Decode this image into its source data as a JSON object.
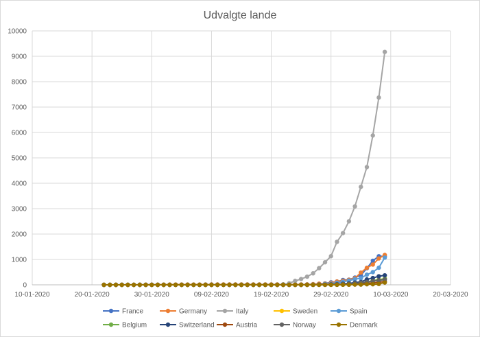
{
  "chart_data": {
    "type": "line",
    "title": "Udvalgte lande",
    "xlabel": "",
    "ylabel": "",
    "x_axis": {
      "type": "date",
      "min": "2020-01-10",
      "max": "2020-03-20",
      "tick_labels": [
        "10-01-2020",
        "20-01-2020",
        "30-01-2020",
        "09-02-2020",
        "19-02-2020",
        "29-02-2020",
        "10-03-2020",
        "20-03-2020"
      ]
    },
    "y_axis": {
      "min": 0,
      "max": 10000,
      "tick_labels": [
        "0",
        "1000",
        "2000",
        "3000",
        "4000",
        "5000",
        "6000",
        "7000",
        "8000",
        "9000",
        "10000"
      ]
    },
    "grid": true,
    "legend_position": "bottom",
    "dates": [
      "2020-01-22",
      "2020-01-23",
      "2020-01-24",
      "2020-01-25",
      "2020-01-26",
      "2020-01-27",
      "2020-01-28",
      "2020-01-29",
      "2020-01-30",
      "2020-01-31",
      "2020-02-01",
      "2020-02-02",
      "2020-02-03",
      "2020-02-04",
      "2020-02-05",
      "2020-02-06",
      "2020-02-07",
      "2020-02-08",
      "2020-02-09",
      "2020-02-10",
      "2020-02-11",
      "2020-02-12",
      "2020-02-13",
      "2020-02-14",
      "2020-02-15",
      "2020-02-16",
      "2020-02-17",
      "2020-02-18",
      "2020-02-19",
      "2020-02-20",
      "2020-02-21",
      "2020-02-22",
      "2020-02-23",
      "2020-02-24",
      "2020-02-25",
      "2020-02-26",
      "2020-02-27",
      "2020-02-28",
      "2020-02-29",
      "2020-03-01",
      "2020-03-02",
      "2020-03-03",
      "2020-03-04",
      "2020-03-05",
      "2020-03-06",
      "2020-03-07",
      "2020-03-08",
      "2020-03-09"
    ],
    "series": [
      {
        "name": "France",
        "color": "#4472c4",
        "values": [
          0,
          0,
          2,
          3,
          3,
          3,
          4,
          5,
          5,
          5,
          6,
          6,
          6,
          6,
          6,
          6,
          6,
          11,
          11,
          11,
          11,
          11,
          11,
          11,
          12,
          12,
          12,
          12,
          12,
          12,
          12,
          12,
          12,
          12,
          14,
          18,
          38,
          57,
          100,
          130,
          191,
          204,
          285,
          377,
          653,
          949,
          1126,
          1126
        ]
      },
      {
        "name": "Germany",
        "color": "#ed7d31",
        "values": [
          0,
          0,
          0,
          0,
          0,
          1,
          4,
          4,
          4,
          5,
          8,
          10,
          12,
          12,
          12,
          12,
          13,
          13,
          14,
          14,
          16,
          16,
          16,
          16,
          16,
          16,
          16,
          16,
          16,
          16,
          16,
          16,
          16,
          16,
          17,
          27,
          46,
          48,
          79,
          130,
          159,
          196,
          262,
          482,
          670,
          799,
          1040,
          1176
        ]
      },
      {
        "name": "Italy",
        "color": "#a5a5a5",
        "values": [
          0,
          0,
          0,
          0,
          0,
          0,
          0,
          0,
          0,
          2,
          2,
          2,
          2,
          2,
          2,
          2,
          3,
          3,
          3,
          3,
          3,
          3,
          3,
          3,
          3,
          3,
          3,
          3,
          3,
          3,
          20,
          62,
          155,
          229,
          322,
          453,
          655,
          888,
          1128,
          1694,
          2036,
          2502,
          3089,
          3858,
          4636,
          5883,
          7375,
          9172
        ]
      },
      {
        "name": "Sweden",
        "color": "#ffc000",
        "values": [
          0,
          0,
          0,
          0,
          0,
          0,
          0,
          0,
          0,
          1,
          1,
          1,
          1,
          1,
          1,
          1,
          1,
          1,
          1,
          1,
          1,
          1,
          1,
          1,
          1,
          1,
          1,
          1,
          1,
          1,
          1,
          1,
          1,
          1,
          1,
          2,
          7,
          7,
          12,
          14,
          15,
          21,
          35,
          94,
          101,
          161,
          203,
          248
        ]
      },
      {
        "name": "Spain",
        "color": "#5b9bd5",
        "values": [
          0,
          0,
          0,
          0,
          0,
          0,
          0,
          0,
          0,
          0,
          1,
          1,
          1,
          1,
          1,
          1,
          1,
          1,
          2,
          2,
          2,
          2,
          2,
          2,
          2,
          2,
          2,
          2,
          2,
          2,
          2,
          2,
          2,
          2,
          6,
          13,
          15,
          32,
          45,
          84,
          120,
          165,
          222,
          259,
          400,
          500,
          673,
          1073
        ]
      },
      {
        "name": "Belgium",
        "color": "#70ad47",
        "values": [
          0,
          0,
          0,
          0,
          0,
          0,
          0,
          0,
          0,
          0,
          0,
          0,
          0,
          0,
          1,
          1,
          1,
          1,
          1,
          1,
          1,
          1,
          1,
          1,
          1,
          1,
          1,
          1,
          1,
          1,
          1,
          1,
          1,
          1,
          1,
          1,
          1,
          1,
          1,
          2,
          8,
          13,
          23,
          50,
          109,
          169,
          200,
          239
        ]
      },
      {
        "name": "Switzerland",
        "color": "#264478",
        "values": [
          0,
          0,
          0,
          0,
          0,
          0,
          0,
          0,
          0,
          0,
          0,
          0,
          0,
          0,
          0,
          0,
          0,
          0,
          0,
          0,
          0,
          0,
          0,
          0,
          0,
          0,
          0,
          0,
          0,
          0,
          0,
          0,
          0,
          0,
          1,
          1,
          8,
          8,
          18,
          27,
          42,
          56,
          90,
          114,
          214,
          268,
          337,
          374
        ]
      },
      {
        "name": "Austria",
        "color": "#9e480e",
        "values": [
          0,
          0,
          0,
          0,
          0,
          0,
          0,
          0,
          0,
          0,
          0,
          0,
          0,
          0,
          0,
          0,
          0,
          0,
          0,
          0,
          0,
          0,
          0,
          0,
          0,
          0,
          0,
          0,
          0,
          0,
          0,
          0,
          0,
          0,
          2,
          2,
          3,
          3,
          9,
          14,
          18,
          21,
          29,
          41,
          55,
          79,
          104,
          131
        ]
      },
      {
        "name": "Norway",
        "color": "#636363",
        "values": [
          0,
          0,
          0,
          0,
          0,
          0,
          0,
          0,
          0,
          0,
          0,
          0,
          0,
          0,
          0,
          0,
          0,
          0,
          0,
          0,
          0,
          0,
          0,
          0,
          0,
          0,
          0,
          0,
          0,
          0,
          0,
          0,
          0,
          0,
          0,
          1,
          1,
          6,
          15,
          19,
          25,
          32,
          56,
          87,
          108,
          147,
          176,
          205
        ]
      },
      {
        "name": "Denmark",
        "color": "#997300",
        "values": [
          0,
          0,
          0,
          0,
          0,
          0,
          0,
          0,
          0,
          0,
          0,
          0,
          0,
          0,
          0,
          0,
          0,
          0,
          0,
          0,
          0,
          0,
          0,
          0,
          0,
          0,
          1,
          1,
          1,
          1,
          1,
          1,
          1,
          1,
          1,
          1,
          1,
          2,
          2,
          3,
          4,
          5,
          10,
          10,
          23,
          23,
          35,
          90
        ]
      }
    ]
  }
}
